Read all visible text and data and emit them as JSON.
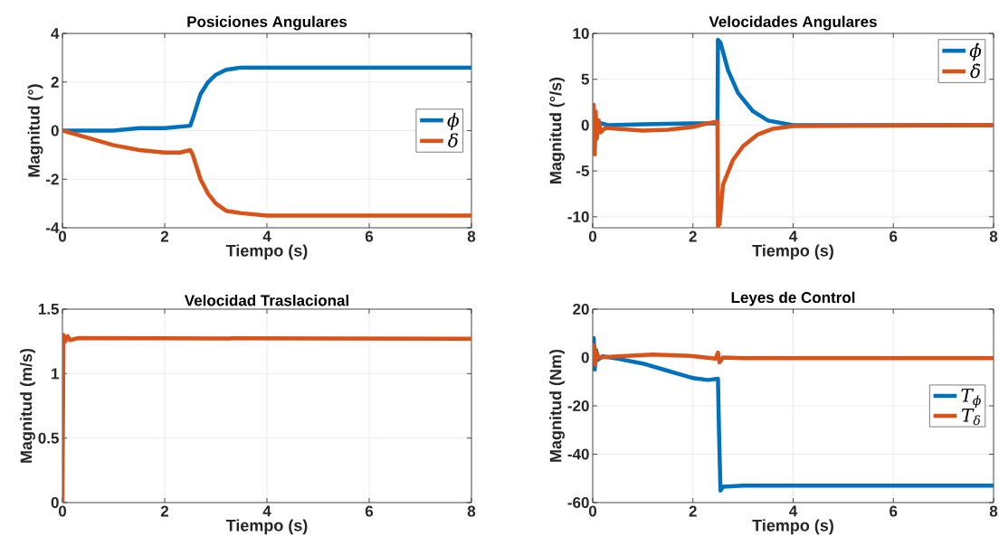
{
  "chart_data": [
    {
      "type": "line",
      "title": "Posiciones Angulares",
      "xlabel": "Tiempo (s)",
      "ylabel": "Magnitud (°)",
      "xlim": [
        0,
        8
      ],
      "ylim": [
        -4,
        4
      ],
      "xticks": [
        0,
        2,
        4,
        6,
        8
      ],
      "yticks": [
        -4,
        -2,
        0,
        2,
        4
      ],
      "grid": true,
      "legend": "right",
      "marker": "none",
      "line_style": "solid",
      "series": [
        {
          "name": "ϕ",
          "color": "#0072bd",
          "x": [
            0,
            0.5,
            1,
            1.5,
            2,
            2.5,
            2.55,
            2.7,
            2.85,
            3,
            3.2,
            3.5,
            4,
            8
          ],
          "values": [
            0,
            0,
            0,
            0.1,
            0.1,
            0.2,
            0.5,
            1.5,
            2.0,
            2.3,
            2.5,
            2.6,
            2.6,
            2.6
          ]
        },
        {
          "name": "δ",
          "color": "#d95319",
          "x": [
            0,
            0.5,
            1,
            1.5,
            2,
            2.3,
            2.5,
            2.55,
            2.7,
            2.85,
            3,
            3.2,
            3.5,
            4,
            8
          ],
          "values": [
            0,
            -0.3,
            -0.6,
            -0.8,
            -0.9,
            -0.9,
            -0.8,
            -1.0,
            -2.0,
            -2.6,
            -3.0,
            -3.3,
            -3.4,
            -3.5,
            -3.5
          ]
        }
      ]
    },
    {
      "type": "line",
      "title": "Velocidades Angulares",
      "xlabel": "Tiempo (s)",
      "ylabel": "Magnitud (°/s)",
      "xlim": [
        0,
        8
      ],
      "ylim": [
        -11.2,
        10
      ],
      "xticks": [
        0,
        2,
        4,
        6,
        8
      ],
      "yticks": [
        -10,
        -5,
        0,
        5,
        10
      ],
      "grid": true,
      "legend": "top right",
      "marker": "none",
      "line_style": "solid",
      "series": [
        {
          "name": "ϕ̇",
          "color": "#0072bd",
          "x": [
            0,
            0.1,
            0.3,
            1,
            2,
            2.49,
            2.5,
            2.55,
            2.7,
            2.9,
            3.2,
            3.5,
            4,
            8
          ],
          "values": [
            0,
            0.3,
            0,
            0.1,
            0.2,
            0.2,
            9.3,
            9,
            6,
            3.5,
            1.5,
            0.5,
            0,
            0
          ]
        },
        {
          "name": "δ̇",
          "color": "#d95319",
          "x": [
            0,
            0.02,
            0.04,
            0.06,
            0.08,
            0.12,
            0.16,
            0.25,
            0.5,
            1,
            1.5,
            2,
            2.3,
            2.49,
            2.5,
            2.53,
            2.6,
            2.8,
            3.0,
            3.3,
            3.6,
            4,
            8
          ],
          "values": [
            0,
            2.2,
            -3.2,
            1.5,
            -1.5,
            0.5,
            -0.8,
            -0.3,
            -0.4,
            -0.6,
            -0.5,
            -0.2,
            0.2,
            0.4,
            -11,
            -10.8,
            -6.5,
            -3.8,
            -2.3,
            -1.0,
            -0.4,
            -0.1,
            0
          ]
        }
      ]
    },
    {
      "type": "line",
      "title": "Velocidad Traslacional",
      "xlabel": "Tiempo (s)",
      "ylabel": "Magnitud (m/s)",
      "xlim": [
        0,
        8
      ],
      "ylim": [
        0,
        1.5
      ],
      "xticks": [
        0,
        2,
        4,
        6,
        8
      ],
      "yticks": [
        0,
        0.5,
        1,
        1.5
      ],
      "grid": true,
      "marker": "none",
      "line_style": "solid",
      "series": [
        {
          "color": "#d95319",
          "x": [
            0,
            0.02,
            0.06,
            0.1,
            0.15,
            0.3,
            8
          ],
          "values": [
            0,
            1.3,
            1.25,
            1.29,
            1.26,
            1.275,
            1.27
          ]
        }
      ]
    },
    {
      "type": "line",
      "title": "Leyes de Control",
      "xlabel": "Tiempo (s)",
      "ylabel": "Magnitud (Nm)",
      "xlim": [
        0,
        8
      ],
      "ylim": [
        -60,
        20
      ],
      "xticks": [
        0,
        2,
        4,
        6,
        8
      ],
      "yticks": [
        -60,
        -40,
        -20,
        0,
        20
      ],
      "grid": true,
      "legend": "right",
      "marker": "none",
      "line_style": "solid",
      "series": [
        {
          "name": "T$_{ϕ}$",
          "color": "#0072bd",
          "x": [
            0,
            0.02,
            0.04,
            0.07,
            0.1,
            0.2,
            0.5,
            1,
            1.5,
            2,
            2.3,
            2.5,
            2.52,
            2.55,
            2.6,
            3,
            8
          ],
          "values": [
            0,
            8,
            -5,
            3,
            -1,
            0.5,
            -0.5,
            -2.5,
            -5.5,
            -8.5,
            -9.3,
            -8.8,
            -30,
            -55,
            -53.5,
            -53,
            -53
          ]
        },
        {
          "name": "T$_{δ}$",
          "color": "#d95319",
          "x": [
            0,
            0.03,
            0.05,
            0.08,
            0.12,
            0.5,
            1.2,
            2,
            2.45,
            2.5,
            2.53,
            2.6,
            3,
            8
          ],
          "values": [
            0,
            5,
            -3,
            2,
            0,
            0.5,
            1.2,
            0.6,
            -0.5,
            2,
            -2,
            0,
            -0.3,
            -0.3
          ]
        }
      ]
    }
  ]
}
